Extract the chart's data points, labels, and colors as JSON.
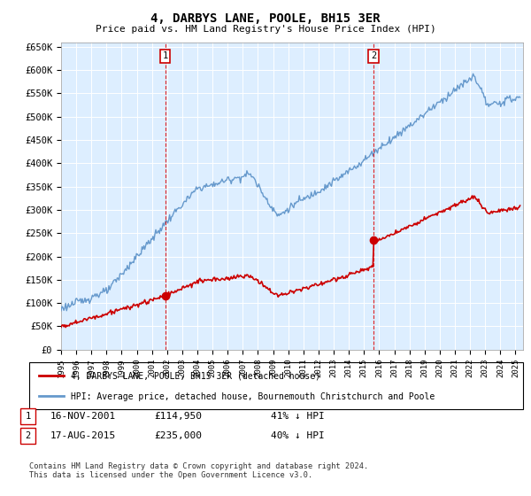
{
  "title": "4, DARBYS LANE, POOLE, BH15 3ER",
  "subtitle": "Price paid vs. HM Land Registry's House Price Index (HPI)",
  "legend_line1": "4, DARBYS LANE, POOLE, BH15 3ER (detached house)",
  "legend_line2": "HPI: Average price, detached house, Bournemouth Christchurch and Poole",
  "annotation1_date": "16-NOV-2001",
  "annotation1_price": "£114,950",
  "annotation1_pct": "41% ↓ HPI",
  "annotation1_year": 2001.88,
  "annotation1_value": 114950,
  "annotation2_date": "17-AUG-2015",
  "annotation2_price": "£235,000",
  "annotation2_pct": "40% ↓ HPI",
  "annotation2_year": 2015.63,
  "annotation2_value": 235000,
  "footnote": "Contains HM Land Registry data © Crown copyright and database right 2024.\nThis data is licensed under the Open Government Licence v3.0.",
  "red_line_color": "#cc0000",
  "blue_line_color": "#6699cc",
  "background_color": "#ddeeff",
  "grid_color": "#ffffff",
  "ylim": [
    0,
    660000
  ],
  "xlim": [
    1995,
    2025.5
  ],
  "yticks": [
    0,
    50000,
    100000,
    150000,
    200000,
    250000,
    300000,
    350000,
    400000,
    450000,
    500000,
    550000,
    600000,
    650000
  ]
}
